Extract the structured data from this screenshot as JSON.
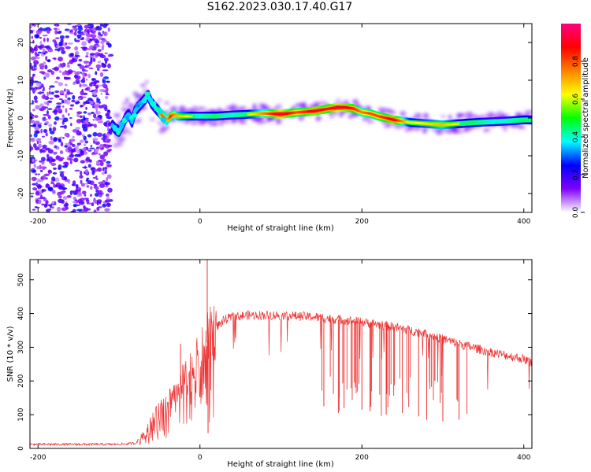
{
  "chart_data": [
    {
      "type": "heatmap",
      "title": "S162.2023.030.17.40.G17",
      "xlabel": "Height of straight line (km)",
      "ylabel": "Frequency (Hz)",
      "xlim": [
        -210,
        410
      ],
      "ylim": [
        -25,
        25
      ],
      "xticks": [
        -200,
        0,
        200,
        400
      ],
      "yticks": [
        -20,
        -10,
        0,
        10,
        20
      ],
      "colorbar": {
        "label": "Normalized spectral amplitude",
        "range": [
          0,
          1
        ],
        "ticks": [
          "0.0",
          "0.2",
          "0.4",
          "0.6",
          "0.8"
        ],
        "colors": [
          "#ffffff",
          "#8000ff",
          "#0000ff",
          "#00ffff",
          "#00ff00",
          "#ffff00",
          "#ff8000",
          "#ff0000",
          "#ff0080"
        ]
      },
      "noise_region_x": [
        -210,
        -110
      ],
      "track": {
        "x": [
          -108,
          -104,
          -100,
          -96,
          -92,
          -88,
          -84,
          -80,
          -76,
          -72,
          -68,
          -64,
          -60,
          -56,
          -52,
          -48,
          -44,
          -40,
          -36,
          -32,
          -28,
          -20,
          -10,
          0,
          20,
          40,
          60,
          80,
          100,
          120,
          140,
          160,
          170,
          180,
          190,
          200,
          210,
          220,
          240,
          260,
          280,
          300,
          320,
          340,
          360,
          380,
          400,
          410
        ],
        "frequency_hz": [
          -2,
          -3,
          -3.5,
          -2,
          0,
          1,
          -1,
          2,
          3,
          4,
          5,
          6,
          4,
          3,
          2,
          1,
          0,
          -0.5,
          0.5,
          1,
          0.5,
          0.5,
          0.5,
          0.5,
          0.5,
          0.8,
          1,
          1.2,
          1.0,
          1.5,
          1.8,
          2.5,
          2.8,
          2.8,
          2.5,
          1.5,
          1.2,
          0.5,
          -0.5,
          -1.2,
          -1.5,
          -1.8,
          -1.5,
          -1.2,
          -1,
          -0.8,
          -0.5,
          -0.5
        ],
        "amplitude": [
          0.5,
          0.5,
          0.55,
          0.45,
          0.5,
          0.4,
          0.45,
          0.5,
          0.5,
          0.5,
          0.55,
          0.5,
          0.55,
          0.5,
          0.6,
          0.75,
          0.8,
          0.7,
          0.85,
          0.75,
          0.7,
          0.65,
          0.6,
          0.55,
          0.6,
          0.55,
          0.6,
          0.75,
          0.95,
          0.8,
          0.9,
          0.85,
          0.95,
          0.9,
          0.85,
          0.75,
          0.8,
          0.8,
          0.9,
          0.6,
          0.65,
          0.7,
          0.6,
          0.6,
          0.55,
          0.55,
          0.6,
          0.6
        ]
      }
    },
    {
      "type": "line",
      "xlabel": "Height of straight line (km)",
      "ylabel": "SNR (10 * v/v)",
      "xlim": [
        -210,
        410
      ],
      "ylim": [
        0,
        560
      ],
      "xticks": [
        -200,
        0,
        200,
        400
      ],
      "yticks": [
        0,
        100,
        200,
        300,
        400,
        500
      ],
      "color": "#ee3333",
      "envelope": {
        "x": [
          -210,
          -150,
          -100,
          -80,
          -70,
          -60,
          -40,
          -20,
          0,
          10,
          20,
          30,
          40,
          60,
          100,
          140,
          160,
          200,
          240,
          280,
          320,
          360,
          400,
          410
        ],
        "y": [
          12,
          12,
          12,
          15,
          40,
          80,
          140,
          200,
          270,
          320,
          360,
          380,
          390,
          395,
          395,
          390,
          385,
          375,
          360,
          340,
          310,
          285,
          265,
          255
        ]
      },
      "spikes": [
        {
          "x": 9,
          "y": 560
        },
        {
          "x": -24,
          "y": 310
        },
        {
          "x": 10,
          "y": 45
        },
        {
          "x": 153,
          "y": 125
        },
        {
          "x": 178,
          "y": 120
        },
        {
          "x": 200,
          "y": 115
        },
        {
          "x": 210,
          "y": 110
        },
        {
          "x": 230,
          "y": 100
        },
        {
          "x": 250,
          "y": 105
        },
        {
          "x": 270,
          "y": 95
        },
        {
          "x": 280,
          "y": 85
        },
        {
          "x": 300,
          "y": 80
        },
        {
          "x": 320,
          "y": 85
        }
      ]
    }
  ]
}
